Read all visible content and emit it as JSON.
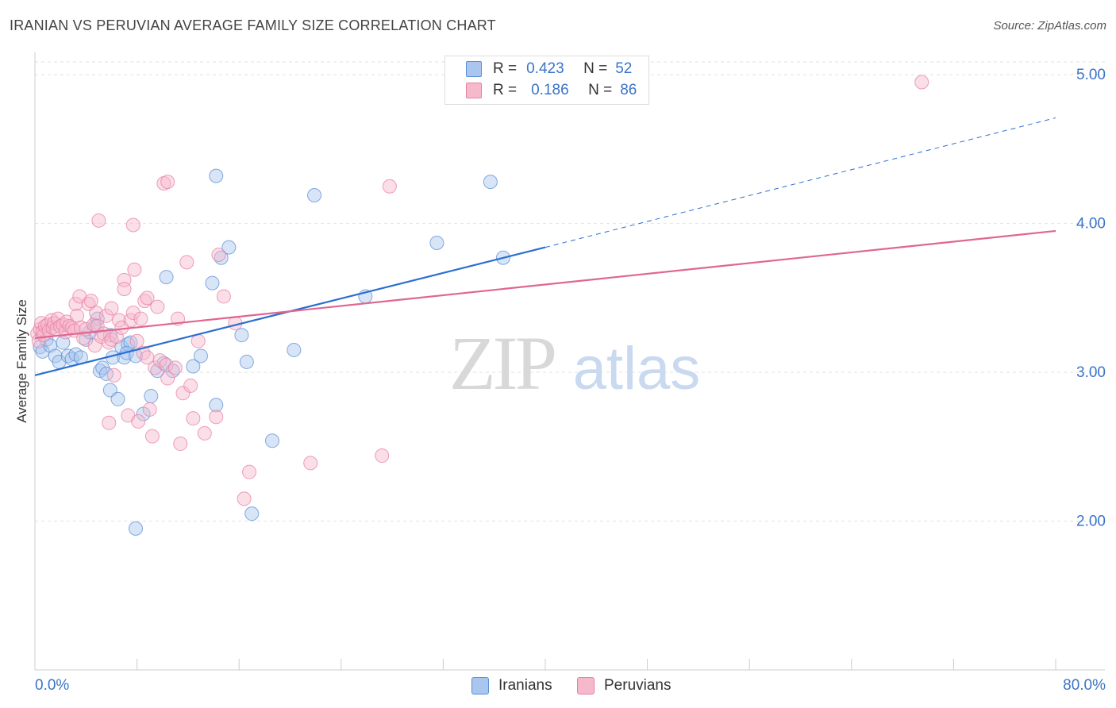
{
  "header": {
    "title": "IRANIAN VS PERUVIAN AVERAGE FAMILY SIZE CORRELATION CHART",
    "source": "Source: ZipAtlas.com"
  },
  "watermark": {
    "zip": "ZIP",
    "atlas": "atlas"
  },
  "legend": {
    "iranians": {
      "r_label": "R =",
      "r_value": "0.423",
      "n_label": "N =",
      "n_value": "52",
      "color": "#a9c6ee"
    },
    "peruvians": {
      "r_label": "R =",
      "r_value": "0.186",
      "n_label": "N =",
      "n_value": "86",
      "color": "#f6b9cc"
    }
  },
  "bottom_legend": {
    "iranians": "Iranians",
    "peruvians": "Peruvians"
  },
  "chart_data": {
    "type": "scatter",
    "title": "IRANIAN VS PERUVIAN AVERAGE FAMILY SIZE CORRELATION CHART",
    "xlabel": "",
    "ylabel": "Average Family Size",
    "xlim": [
      0,
      80
    ],
    "ylim": [
      1.0,
      5.15
    ],
    "x_tick_labels": [
      "0.0%",
      "80.0%"
    ],
    "y_ticks": [
      2.0,
      3.0,
      4.0,
      5.0
    ],
    "y_tick_labels": [
      "2.00",
      "3.00",
      "4.00",
      "5.00"
    ],
    "grid": true,
    "legend_position": "top-center",
    "series": [
      {
        "name": "Iranians",
        "color": "#5b8fd6",
        "fill": "#a9c6ee",
        "trend": {
          "x0": 0,
          "y0": 2.98,
          "x1": 40,
          "y1": 3.84,
          "dashed_to_x": 80,
          "dashed_to_y": 4.71,
          "color": "#2b6fcf"
        },
        "points": [
          [
            0.4,
            3.17
          ],
          [
            0.6,
            3.14
          ],
          [
            0.9,
            3.22
          ],
          [
            1.2,
            3.18
          ],
          [
            1.6,
            3.11
          ],
          [
            1.9,
            3.07
          ],
          [
            2.2,
            3.2
          ],
          [
            2.6,
            3.11
          ],
          [
            2.9,
            3.09
          ],
          [
            3.2,
            3.12
          ],
          [
            3.6,
            3.1
          ],
          [
            4.0,
            3.22
          ],
          [
            4.3,
            3.27
          ],
          [
            4.7,
            3.31
          ],
          [
            4.9,
            3.36
          ],
          [
            5.1,
            3.01
          ],
          [
            5.3,
            3.03
          ],
          [
            5.6,
            2.99
          ],
          [
            5.9,
            3.25
          ],
          [
            5.9,
            2.88
          ],
          [
            6.1,
            3.1
          ],
          [
            6.5,
            2.82
          ],
          [
            6.8,
            3.17
          ],
          [
            7.0,
            3.1
          ],
          [
            7.3,
            3.19
          ],
          [
            7.5,
            3.2
          ],
          [
            7.2,
            3.13
          ],
          [
            7.9,
            3.11
          ],
          [
            7.9,
            1.95
          ],
          [
            8.5,
            2.72
          ],
          [
            9.1,
            2.84
          ],
          [
            9.6,
            3.01
          ],
          [
            10.1,
            3.06
          ],
          [
            10.3,
            3.64
          ],
          [
            10.8,
            3.01
          ],
          [
            12.4,
            3.04
          ],
          [
            13.0,
            3.11
          ],
          [
            13.9,
            3.6
          ],
          [
            14.2,
            2.78
          ],
          [
            14.2,
            4.32
          ],
          [
            14.6,
            3.77
          ],
          [
            15.2,
            3.84
          ],
          [
            16.2,
            3.25
          ],
          [
            16.6,
            3.07
          ],
          [
            17.0,
            2.05
          ],
          [
            18.6,
            2.54
          ],
          [
            20.3,
            3.15
          ],
          [
            21.9,
            4.19
          ],
          [
            25.9,
            3.51
          ],
          [
            31.5,
            3.87
          ],
          [
            35.7,
            4.28
          ],
          [
            36.7,
            3.77
          ]
        ]
      },
      {
        "name": "Peruvians",
        "color": "#e87fa2",
        "fill": "#f6b9cc",
        "trend": {
          "x0": 0,
          "y0": 3.23,
          "x1": 80,
          "y1": 3.95,
          "color": "#e06690"
        },
        "points": [
          [
            0.2,
            3.26
          ],
          [
            0.3,
            3.21
          ],
          [
            0.4,
            3.29
          ],
          [
            0.5,
            3.33
          ],
          [
            0.6,
            3.27
          ],
          [
            0.7,
            3.25
          ],
          [
            0.8,
            3.31
          ],
          [
            1.0,
            3.32
          ],
          [
            1.1,
            3.28
          ],
          [
            1.3,
            3.35
          ],
          [
            1.4,
            3.3
          ],
          [
            1.5,
            3.33
          ],
          [
            1.7,
            3.29
          ],
          [
            1.8,
            3.36
          ],
          [
            2.0,
            3.31
          ],
          [
            2.2,
            3.32
          ],
          [
            2.4,
            3.27
          ],
          [
            2.5,
            3.34
          ],
          [
            2.7,
            3.31
          ],
          [
            2.9,
            3.3
          ],
          [
            3.1,
            3.28
          ],
          [
            3.2,
            3.46
          ],
          [
            3.3,
            3.38
          ],
          [
            3.5,
            3.51
          ],
          [
            3.6,
            3.3
          ],
          [
            3.8,
            3.23
          ],
          [
            4.0,
            3.29
          ],
          [
            4.2,
            3.46
          ],
          [
            4.4,
            3.48
          ],
          [
            4.6,
            3.32
          ],
          [
            4.7,
            3.18
          ],
          [
            4.8,
            3.4
          ],
          [
            4.9,
            3.31
          ],
          [
            5.0,
            4.02
          ],
          [
            5.2,
            3.24
          ],
          [
            5.4,
            3.26
          ],
          [
            5.6,
            3.38
          ],
          [
            5.8,
            3.2
          ],
          [
            5.8,
            2.66
          ],
          [
            6.0,
            3.22
          ],
          [
            6.0,
            3.43
          ],
          [
            6.2,
            2.98
          ],
          [
            6.4,
            3.24
          ],
          [
            6.6,
            3.35
          ],
          [
            6.8,
            3.3
          ],
          [
            7.0,
            3.62
          ],
          [
            7.0,
            3.56
          ],
          [
            7.3,
            2.71
          ],
          [
            7.5,
            3.35
          ],
          [
            7.7,
            3.4
          ],
          [
            7.7,
            3.99
          ],
          [
            7.8,
            3.69
          ],
          [
            8.0,
            3.21
          ],
          [
            8.1,
            2.67
          ],
          [
            8.3,
            3.36
          ],
          [
            8.5,
            3.13
          ],
          [
            8.6,
            3.48
          ],
          [
            8.8,
            3.1
          ],
          [
            8.8,
            3.5
          ],
          [
            9.0,
            2.75
          ],
          [
            9.2,
            2.57
          ],
          [
            9.4,
            3.03
          ],
          [
            9.6,
            3.44
          ],
          [
            9.8,
            3.08
          ],
          [
            10.1,
            4.27
          ],
          [
            10.3,
            3.05
          ],
          [
            10.4,
            2.96
          ],
          [
            10.4,
            4.28
          ],
          [
            11.0,
            3.03
          ],
          [
            11.2,
            3.36
          ],
          [
            11.6,
            2.86
          ],
          [
            11.4,
            2.52
          ],
          [
            11.9,
            3.74
          ],
          [
            12.2,
            2.91
          ],
          [
            12.4,
            2.69
          ],
          [
            12.8,
            3.21
          ],
          [
            13.3,
            2.59
          ],
          [
            14.2,
            2.7
          ],
          [
            14.4,
            3.79
          ],
          [
            14.8,
            3.51
          ],
          [
            15.7,
            3.33
          ],
          [
            16.8,
            2.33
          ],
          [
            16.4,
            2.15
          ],
          [
            21.6,
            2.39
          ],
          [
            27.2,
            2.44
          ],
          [
            27.8,
            4.25
          ],
          [
            69.5,
            4.95
          ]
        ]
      }
    ]
  }
}
